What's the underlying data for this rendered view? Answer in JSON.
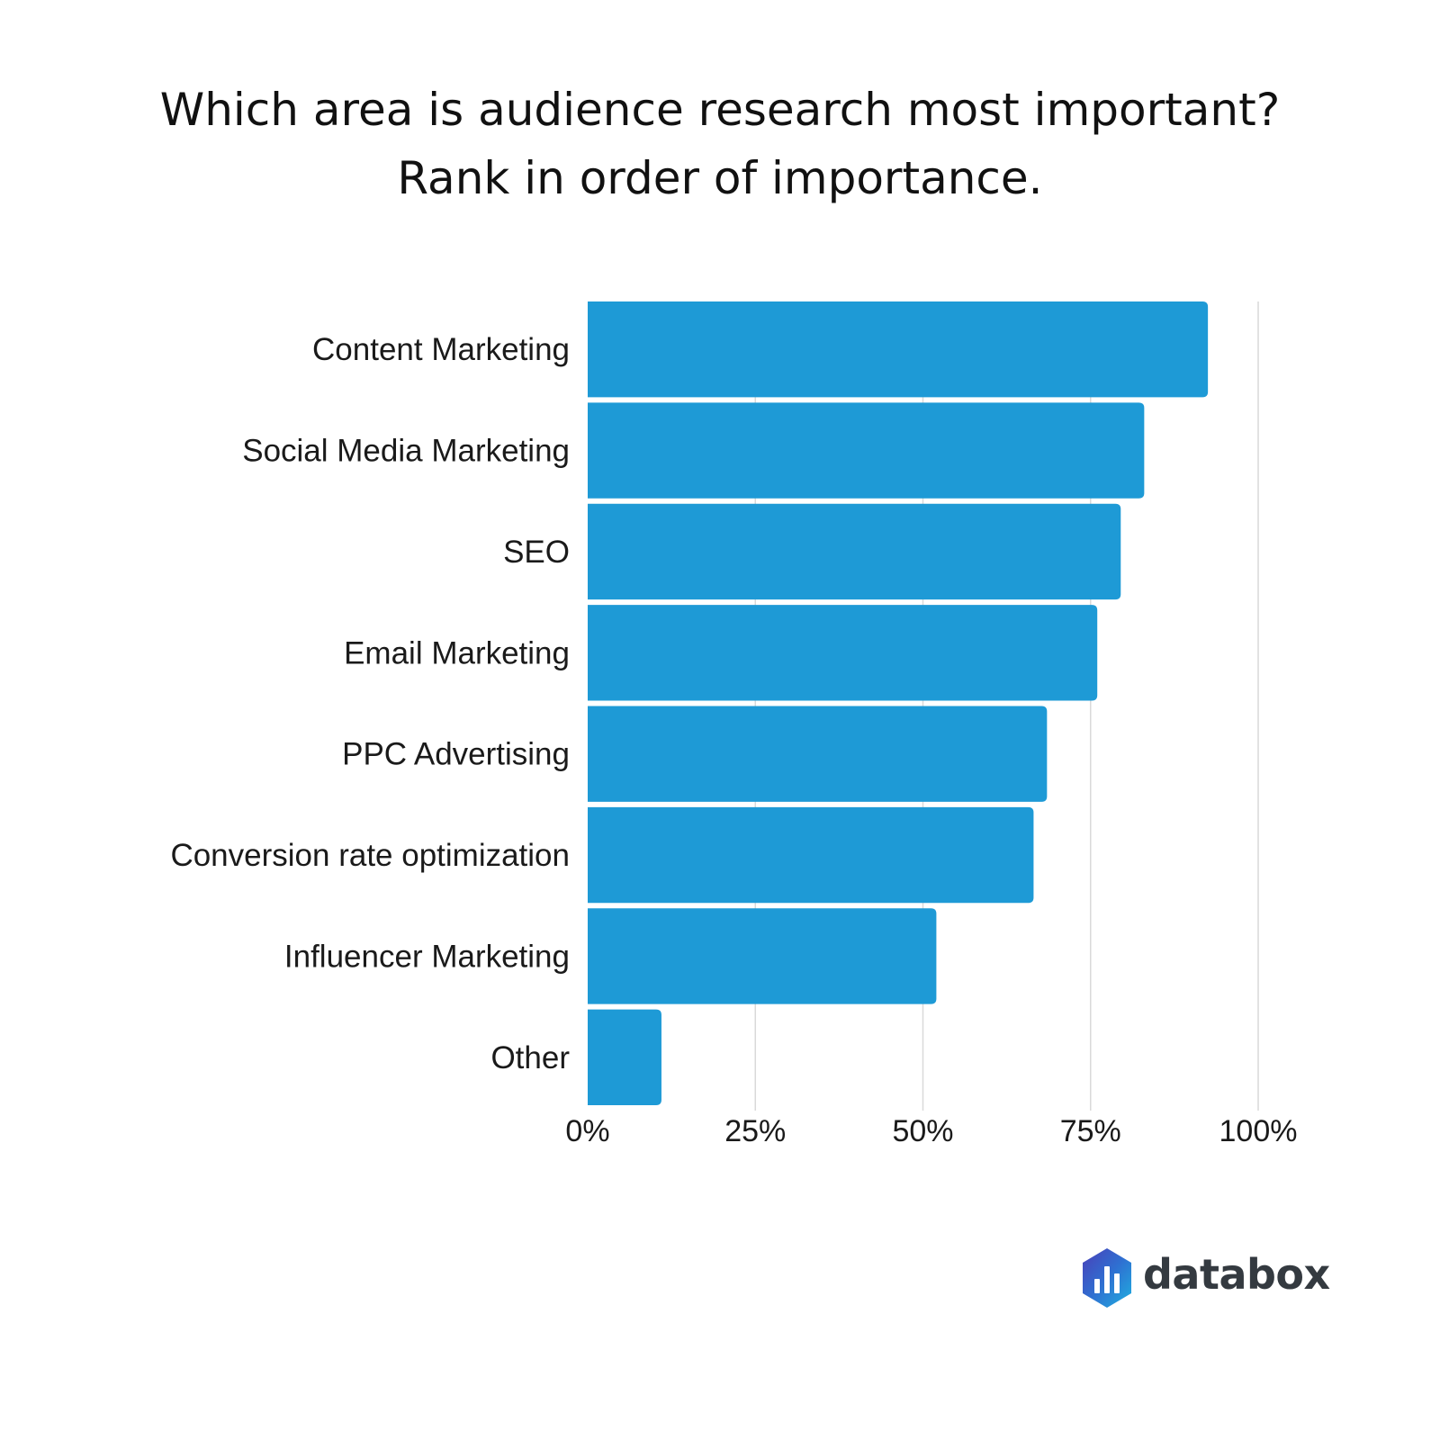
{
  "title": {
    "line1": "Which area is audience research most important?",
    "line2": "Rank in order of importance."
  },
  "brand": {
    "name": "databox",
    "icon": "databox-logo-icon"
  },
  "colors": {
    "bar": "#1E9AD6",
    "grid": "#D9D9D9"
  },
  "chart_data": {
    "type": "bar",
    "orientation": "horizontal",
    "categories": [
      "Content Marketing",
      "Social Media Marketing",
      "SEO",
      "Email Marketing",
      "PPC Advertising",
      "Conversion rate optimization",
      "Influencer Marketing",
      "Other"
    ],
    "values": [
      92.5,
      83,
      79.5,
      76,
      68.5,
      66.5,
      52,
      11
    ],
    "unit": "%",
    "xlim": [
      0,
      100
    ],
    "ticks": [
      0,
      25,
      50,
      75,
      100
    ],
    "tick_labels": [
      "0%",
      "25%",
      "50%",
      "75%",
      "100%"
    ],
    "grid": true
  }
}
